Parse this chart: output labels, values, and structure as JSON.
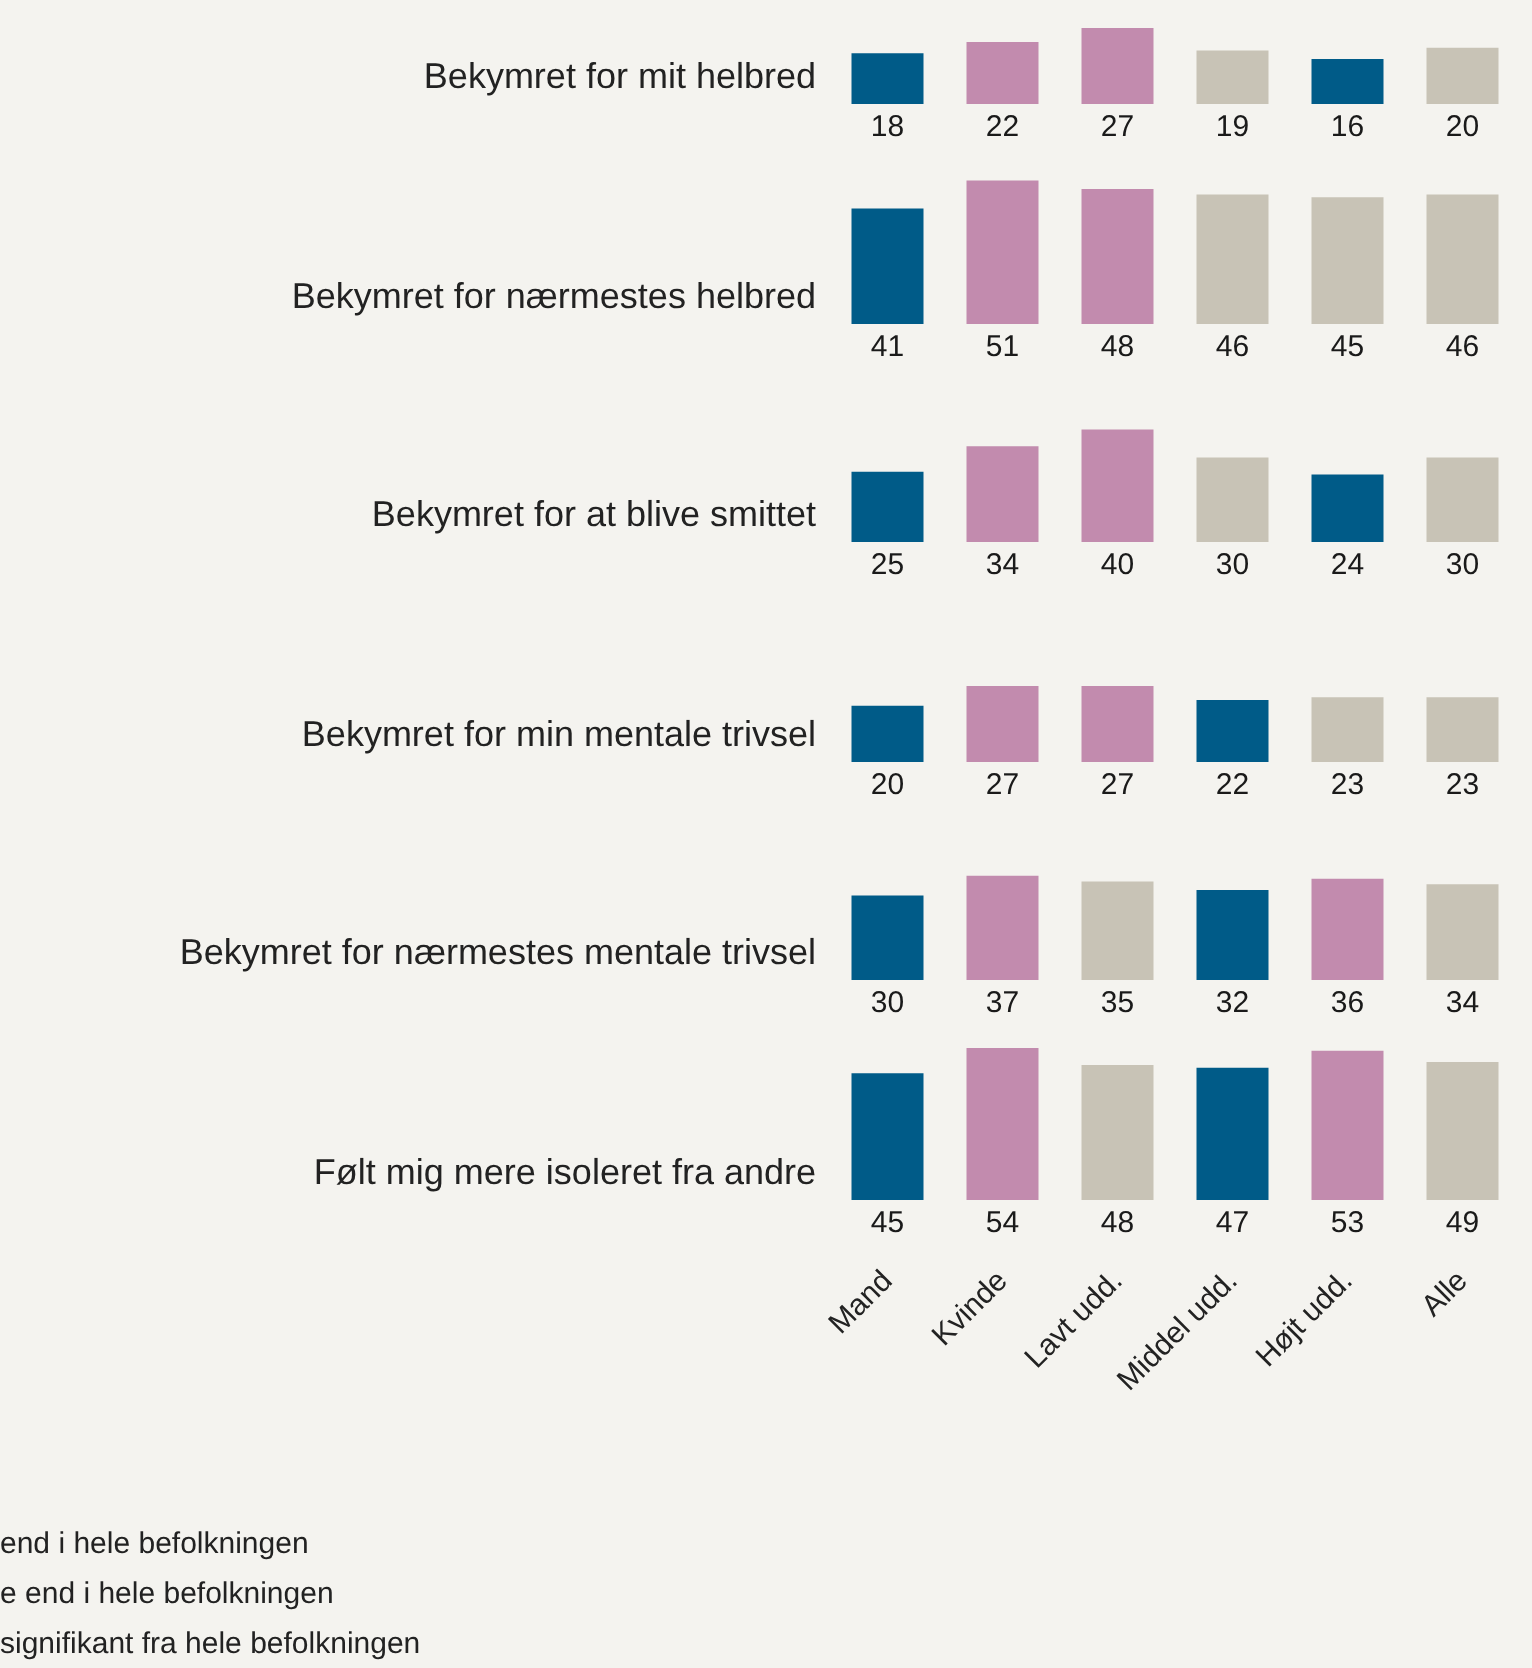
{
  "chart_data": [
    {
      "type": "bar",
      "title": "Bekymret for mit helbred",
      "categories": [
        null,
        null,
        null,
        null,
        null,
        null
      ],
      "values": [
        18,
        22,
        27,
        19,
        16,
        20
      ],
      "colors": [
        "#005b88",
        "#c28bae",
        "#c28bae",
        "#c8c3b6",
        "#005b88",
        "#c8c3b6"
      ],
      "data_labels": true,
      "tick_labels": false
    },
    {
      "type": "bar",
      "title": "Bekymret for nærmestes helbred",
      "categories": [
        null,
        null,
        null,
        null,
        null,
        null
      ],
      "values": [
        41,
        51,
        48,
        46,
        45,
        46
      ],
      "colors": [
        "#005b88",
        "#c28bae",
        "#c28bae",
        "#c8c3b6",
        "#c8c3b6",
        "#c8c3b6"
      ],
      "data_labels": true,
      "tick_labels": false
    },
    {
      "type": "bar",
      "title": "Bekymret for at blive smittet",
      "categories": [
        null,
        null,
        null,
        null,
        null,
        null
      ],
      "values": [
        25,
        34,
        40,
        30,
        24,
        30
      ],
      "colors": [
        "#005b88",
        "#c28bae",
        "#c28bae",
        "#c8c3b6",
        "#005b88",
        "#c8c3b6"
      ],
      "data_labels": true,
      "tick_labels": false
    },
    {
      "type": "bar",
      "title": "Bekymret for min mentale trivsel",
      "categories": [
        null,
        null,
        null,
        null,
        null,
        null
      ],
      "values": [
        20,
        27,
        27,
        22,
        23,
        23
      ],
      "colors": [
        "#005b88",
        "#c28bae",
        "#c28bae",
        "#005b88",
        "#c8c3b6",
        "#c8c3b6"
      ],
      "data_labels": true,
      "tick_labels": false
    },
    {
      "type": "bar",
      "title": "Bekymret for nærmestes mentale trivsel",
      "categories": [
        null,
        null,
        null,
        null,
        null,
        null
      ],
      "values": [
        30,
        37,
        35,
        32,
        36,
        34
      ],
      "colors": [
        "#005b88",
        "#c28bae",
        "#c8c3b6",
        "#005b88",
        "#c28bae",
        "#c8c3b6"
      ],
      "data_labels": true,
      "tick_labels": false
    },
    {
      "type": "bar",
      "title": "Følt mig mere isoleret fra andre",
      "categories": [
        "Mand",
        "Kvinde",
        "Lavt udd.",
        "Middel udd.",
        "Højt udd.",
        "Alle"
      ],
      "values": [
        45,
        54,
        48,
        47,
        53,
        49
      ],
      "colors": [
        "#005b88",
        "#c28bae",
        "#c8c3b6",
        "#005b88",
        "#c28bae",
        "#c8c3b6"
      ],
      "data_labels": true,
      "tick_labels": "x",
      "annotations": [
        "end i hele befolkningen",
        "e end i hele befolkningen",
        "signifikant fra hele befolkningen"
      ]
    }
  ]
}
